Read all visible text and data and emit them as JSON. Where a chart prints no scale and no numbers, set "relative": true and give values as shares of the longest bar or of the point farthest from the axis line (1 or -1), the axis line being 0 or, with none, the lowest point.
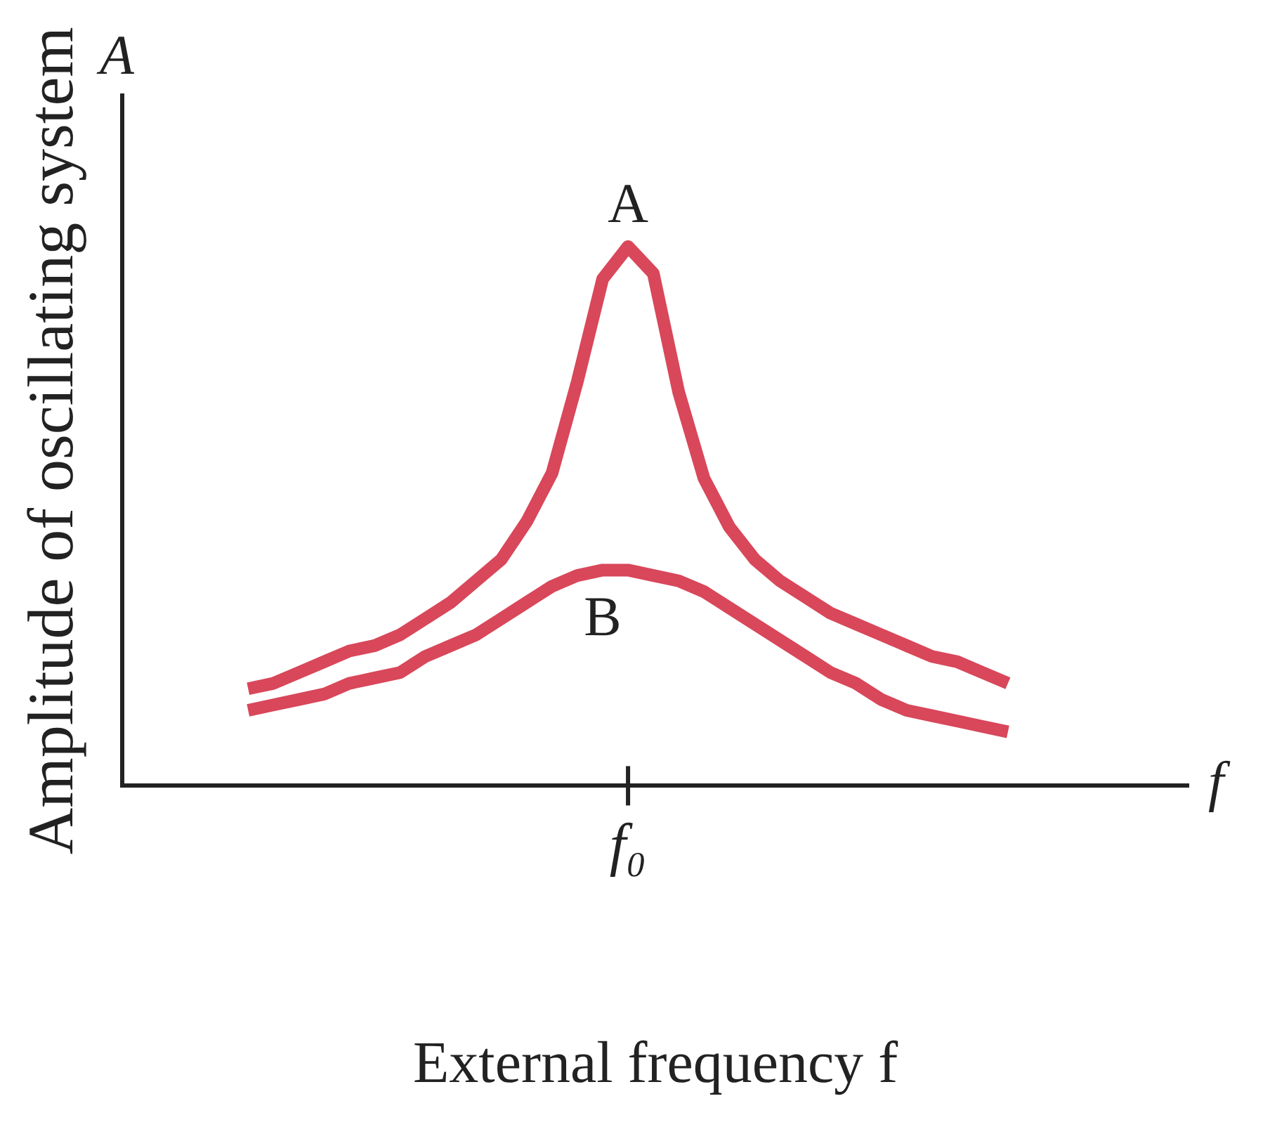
{
  "chart_data": {
    "type": "line",
    "relative": true,
    "xlabel": "External frequency f",
    "ylabel": "Amplitude of oscillating system",
    "annotations": [
      "A",
      "f",
      "f₀"
    ],
    "grid": false,
    "legend": false,
    "marker": "none",
    "line_style": "solid",
    "categories": [
      null,
      null,
      null,
      null,
      null,
      null,
      null,
      null,
      null,
      null,
      null,
      null,
      null,
      null,
      null,
      null,
      null,
      null,
      null,
      null,
      null,
      null,
      null,
      null,
      null,
      null,
      null,
      null,
      null,
      null,
      null
    ],
    "series": [
      {
        "name": "A",
        "color": "#d9475a",
        "values": [
          0.18,
          0.19,
          0.21,
          0.23,
          0.25,
          0.26,
          0.28,
          0.31,
          0.34,
          0.38,
          0.42,
          0.49,
          0.58,
          0.75,
          0.94,
          1.0,
          0.95,
          0.73,
          0.57,
          0.48,
          0.42,
          0.38,
          0.35,
          0.32,
          0.3,
          0.28,
          0.26,
          0.24,
          0.23,
          0.21,
          0.19
        ]
      },
      {
        "name": "B",
        "color": "#d9475a",
        "values": [
          0.14,
          0.15,
          0.16,
          0.17,
          0.19,
          0.2,
          0.21,
          0.24,
          0.26,
          0.28,
          0.31,
          0.34,
          0.37,
          0.39,
          0.4,
          0.4,
          0.39,
          0.38,
          0.36,
          0.33,
          0.3,
          0.27,
          0.24,
          0.21,
          0.19,
          0.16,
          0.14,
          0.13,
          0.12,
          0.11,
          0.1
        ]
      }
    ]
  }
}
